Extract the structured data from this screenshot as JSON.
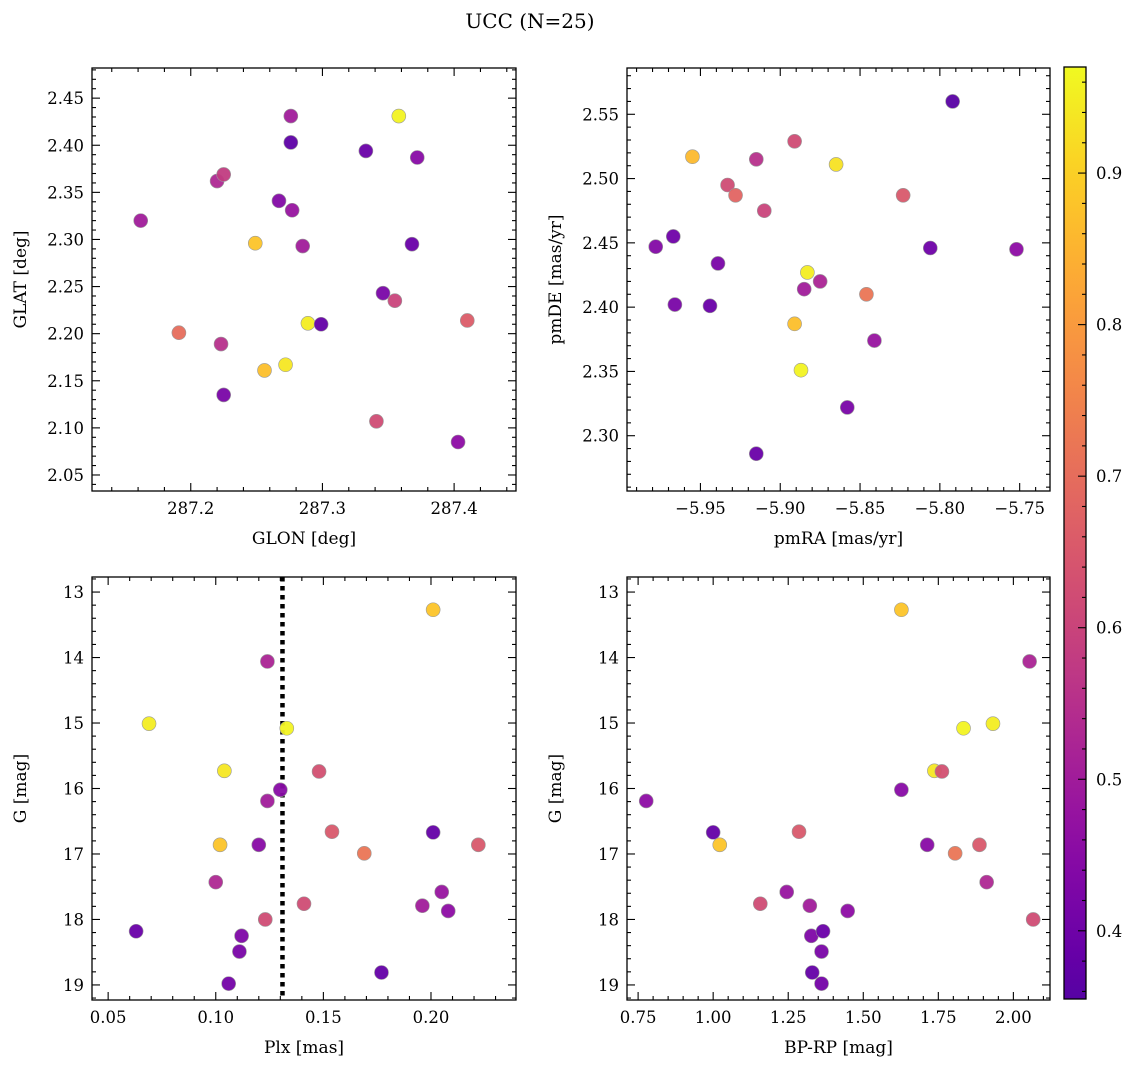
{
  "title": "UCC (N=25)",
  "colorbar": {
    "min": 0.355,
    "max": 0.97,
    "ticks": [
      0.4,
      0.5,
      0.6,
      0.7,
      0.8,
      0.9
    ],
    "tick_labels": [
      "0.4",
      "0.5",
      "0.6",
      "0.7",
      "0.8",
      "0.9"
    ],
    "colormap": "plasma"
  },
  "chart_data": [
    {
      "type": "scatter",
      "xlabel": "GLON [deg]",
      "ylabel": "GLAT [deg]",
      "xlim": [
        287.125,
        287.447
      ],
      "ylim": [
        2.033,
        2.482
      ],
      "xticks": [
        287.2,
        287.3,
        287.4
      ],
      "xtick_labels": [
        "287.2",
        "287.3",
        "287.4"
      ],
      "xminor": 0.02,
      "yticks": [
        2.05,
        2.1,
        2.15,
        2.2,
        2.25,
        2.3,
        2.35,
        2.4,
        2.45
      ],
      "ytick_labels": [
        "2.05",
        "2.10",
        "2.15",
        "2.20",
        "2.25",
        "2.30",
        "2.35",
        "2.40",
        "2.45"
      ],
      "yminor": 0.01,
      "invert_y": false,
      "points": [
        {
          "x": 287.162,
          "y": 2.32,
          "c": 0.5
        },
        {
          "x": 287.191,
          "y": 2.201,
          "c": 0.7
        },
        {
          "x": 287.22,
          "y": 2.362,
          "c": 0.53
        },
        {
          "x": 287.225,
          "y": 2.369,
          "c": 0.58
        },
        {
          "x": 287.223,
          "y": 2.189,
          "c": 0.55
        },
        {
          "x": 287.225,
          "y": 2.135,
          "c": 0.42
        },
        {
          "x": 287.249,
          "y": 2.296,
          "c": 0.88
        },
        {
          "x": 287.256,
          "y": 2.161,
          "c": 0.87
        },
        {
          "x": 287.267,
          "y": 2.341,
          "c": 0.44
        },
        {
          "x": 287.272,
          "y": 2.167,
          "c": 0.94
        },
        {
          "x": 287.276,
          "y": 2.431,
          "c": 0.5
        },
        {
          "x": 287.276,
          "y": 2.403,
          "c": 0.37
        },
        {
          "x": 287.277,
          "y": 2.331,
          "c": 0.48
        },
        {
          "x": 287.285,
          "y": 2.293,
          "c": 0.5
        },
        {
          "x": 287.289,
          "y": 2.211,
          "c": 0.95
        },
        {
          "x": 287.299,
          "y": 2.21,
          "c": 0.38
        },
        {
          "x": 287.333,
          "y": 2.394,
          "c": 0.39
        },
        {
          "x": 287.341,
          "y": 2.107,
          "c": 0.62
        },
        {
          "x": 287.346,
          "y": 2.243,
          "c": 0.42
        },
        {
          "x": 287.355,
          "y": 2.235,
          "c": 0.6
        },
        {
          "x": 287.358,
          "y": 2.431,
          "c": 0.96
        },
        {
          "x": 287.368,
          "y": 2.295,
          "c": 0.39
        },
        {
          "x": 287.372,
          "y": 2.387,
          "c": 0.45
        },
        {
          "x": 287.403,
          "y": 2.085,
          "c": 0.46
        },
        {
          "x": 287.41,
          "y": 2.214,
          "c": 0.66
        }
      ]
    },
    {
      "type": "scatter",
      "xlabel": "pmRA [mas/yr]",
      "ylabel": "pmDE [mas/yr]",
      "xlim": [
        -5.996,
        -5.731
      ],
      "ylim": [
        2.257,
        2.586
      ],
      "xticks": [
        -5.95,
        -5.9,
        -5.85,
        -5.8,
        -5.75
      ],
      "xtick_labels": [
        "−5.95",
        "−5.90",
        "−5.85",
        "−5.80",
        "−5.75"
      ],
      "xminor": 0.01,
      "yticks": [
        2.3,
        2.35,
        2.4,
        2.45,
        2.5,
        2.55
      ],
      "ytick_labels": [
        "2.30",
        "2.35",
        "2.40",
        "2.45",
        "2.50",
        "2.55"
      ],
      "yminor": 0.01,
      "invert_y": false,
      "points": [
        {
          "x": -5.978,
          "y": 2.447,
          "c": 0.44
        },
        {
          "x": -5.967,
          "y": 2.455,
          "c": 0.4
        },
        {
          "x": -5.966,
          "y": 2.402,
          "c": 0.42
        },
        {
          "x": -5.955,
          "y": 2.517,
          "c": 0.86
        },
        {
          "x": -5.944,
          "y": 2.401,
          "c": 0.39
        },
        {
          "x": -5.939,
          "y": 2.434,
          "c": 0.42
        },
        {
          "x": -5.933,
          "y": 2.495,
          "c": 0.62
        },
        {
          "x": -5.928,
          "y": 2.487,
          "c": 0.68
        },
        {
          "x": -5.915,
          "y": 2.515,
          "c": 0.55
        },
        {
          "x": -5.915,
          "y": 2.286,
          "c": 0.39
        },
        {
          "x": -5.91,
          "y": 2.475,
          "c": 0.6
        },
        {
          "x": -5.891,
          "y": 2.529,
          "c": 0.62
        },
        {
          "x": -5.891,
          "y": 2.387,
          "c": 0.87
        },
        {
          "x": -5.887,
          "y": 2.351,
          "c": 0.96
        },
        {
          "x": -5.885,
          "y": 2.414,
          "c": 0.5
        },
        {
          "x": -5.883,
          "y": 2.427,
          "c": 0.95
        },
        {
          "x": -5.875,
          "y": 2.42,
          "c": 0.52
        },
        {
          "x": -5.865,
          "y": 2.511,
          "c": 0.93
        },
        {
          "x": -5.858,
          "y": 2.322,
          "c": 0.42
        },
        {
          "x": -5.846,
          "y": 2.41,
          "c": 0.72
        },
        {
          "x": -5.841,
          "y": 2.374,
          "c": 0.48
        },
        {
          "x": -5.823,
          "y": 2.487,
          "c": 0.65
        },
        {
          "x": -5.806,
          "y": 2.446,
          "c": 0.4
        },
        {
          "x": -5.792,
          "y": 2.56,
          "c": 0.36
        },
        {
          "x": -5.752,
          "y": 2.445,
          "c": 0.46
        }
      ]
    },
    {
      "type": "scatter",
      "xlabel": "Plx [mas]",
      "ylabel": "G [mag]",
      "xlim": [
        0.0425,
        0.2395
      ],
      "ylim": [
        12.77,
        19.23
      ],
      "xticks": [
        0.05,
        0.1,
        0.15,
        0.2
      ],
      "xtick_labels": [
        "0.05",
        "0.10",
        "0.15",
        "0.20"
      ],
      "xminor": 0.01,
      "yticks": [
        13,
        14,
        15,
        16,
        17,
        18,
        19
      ],
      "ytick_labels": [
        "13",
        "14",
        "15",
        "16",
        "17",
        "18",
        "19"
      ],
      "yminor": 0.2,
      "invert_y": true,
      "vline": 0.131,
      "points": [
        {
          "x": 0.063,
          "y": 18.18,
          "c": 0.39
        },
        {
          "x": 0.069,
          "y": 15.01,
          "c": 0.95
        },
        {
          "x": 0.1,
          "y": 17.43,
          "c": 0.53
        },
        {
          "x": 0.102,
          "y": 16.86,
          "c": 0.88
        },
        {
          "x": 0.104,
          "y": 15.73,
          "c": 0.94
        },
        {
          "x": 0.106,
          "y": 18.98,
          "c": 0.41
        },
        {
          "x": 0.111,
          "y": 18.49,
          "c": 0.42
        },
        {
          "x": 0.112,
          "y": 18.25,
          "c": 0.43
        },
        {
          "x": 0.12,
          "y": 16.86,
          "c": 0.45
        },
        {
          "x": 0.123,
          "y": 18.0,
          "c": 0.62
        },
        {
          "x": 0.124,
          "y": 16.19,
          "c": 0.5
        },
        {
          "x": 0.124,
          "y": 14.06,
          "c": 0.52
        },
        {
          "x": 0.13,
          "y": 16.02,
          "c": 0.45
        },
        {
          "x": 0.133,
          "y": 15.08,
          "c": 0.96
        },
        {
          "x": 0.141,
          "y": 17.76,
          "c": 0.62
        },
        {
          "x": 0.148,
          "y": 15.74,
          "c": 0.63
        },
        {
          "x": 0.154,
          "y": 16.66,
          "c": 0.65
        },
        {
          "x": 0.169,
          "y": 16.99,
          "c": 0.72
        },
        {
          "x": 0.177,
          "y": 18.81,
          "c": 0.38
        },
        {
          "x": 0.196,
          "y": 17.79,
          "c": 0.5
        },
        {
          "x": 0.201,
          "y": 13.27,
          "c": 0.88
        },
        {
          "x": 0.201,
          "y": 16.67,
          "c": 0.38
        },
        {
          "x": 0.205,
          "y": 17.58,
          "c": 0.48
        },
        {
          "x": 0.208,
          "y": 17.87,
          "c": 0.46
        },
        {
          "x": 0.222,
          "y": 16.86,
          "c": 0.65
        }
      ]
    },
    {
      "type": "scatter",
      "xlabel": "BP-RP [mag]",
      "ylabel": "G [mag]",
      "xlim": [
        0.713,
        2.122
      ],
      "ylim": [
        12.77,
        19.23
      ],
      "xticks": [
        0.75,
        1.0,
        1.25,
        1.5,
        1.75,
        2.0
      ],
      "xtick_labels": [
        "0.75",
        "1.00",
        "1.25",
        "1.50",
        "1.75",
        "2.00"
      ],
      "xminor": 0.05,
      "yticks": [
        13,
        14,
        15,
        16,
        17,
        18,
        19
      ],
      "ytick_labels": [
        "13",
        "14",
        "15",
        "16",
        "17",
        "18",
        "19"
      ],
      "yminor": 0.2,
      "invert_y": true,
      "points": [
        {
          "x": 0.777,
          "y": 16.19,
          "c": 0.46
        },
        {
          "x": 1.0,
          "y": 16.67,
          "c": 0.38
        },
        {
          "x": 1.022,
          "y": 16.86,
          "c": 0.88
        },
        {
          "x": 1.157,
          "y": 17.76,
          "c": 0.62
        },
        {
          "x": 1.245,
          "y": 17.58,
          "c": 0.48
        },
        {
          "x": 1.286,
          "y": 16.66,
          "c": 0.65
        },
        {
          "x": 1.322,
          "y": 17.79,
          "c": 0.5
        },
        {
          "x": 1.327,
          "y": 18.25,
          "c": 0.43
        },
        {
          "x": 1.33,
          "y": 18.81,
          "c": 0.38
        },
        {
          "x": 1.361,
          "y": 18.98,
          "c": 0.41
        },
        {
          "x": 1.361,
          "y": 18.49,
          "c": 0.42
        },
        {
          "x": 1.366,
          "y": 18.18,
          "c": 0.39
        },
        {
          "x": 1.448,
          "y": 17.87,
          "c": 0.46
        },
        {
          "x": 1.627,
          "y": 13.27,
          "c": 0.88
        },
        {
          "x": 1.627,
          "y": 16.02,
          "c": 0.45
        },
        {
          "x": 1.713,
          "y": 16.86,
          "c": 0.45
        },
        {
          "x": 1.737,
          "y": 15.73,
          "c": 0.94
        },
        {
          "x": 1.762,
          "y": 15.74,
          "c": 0.63
        },
        {
          "x": 1.806,
          "y": 16.99,
          "c": 0.72
        },
        {
          "x": 1.834,
          "y": 15.08,
          "c": 0.96
        },
        {
          "x": 1.887,
          "y": 16.86,
          "c": 0.65
        },
        {
          "x": 1.911,
          "y": 17.43,
          "c": 0.53
        },
        {
          "x": 1.932,
          "y": 15.01,
          "c": 0.95
        },
        {
          "x": 2.054,
          "y": 14.06,
          "c": 0.52
        },
        {
          "x": 2.066,
          "y": 18.0,
          "c": 0.62
        }
      ]
    }
  ]
}
